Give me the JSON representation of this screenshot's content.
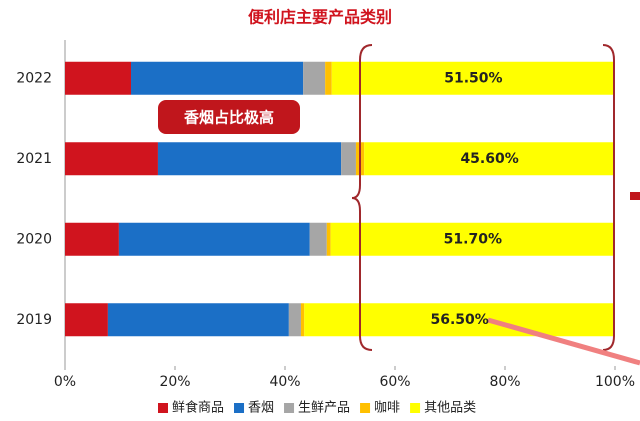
{
  "chart_data": {
    "type": "bar",
    "orientation": "horizontal",
    "stacked": true,
    "title": "便利店主要产品类别",
    "annotation": "香烟占比极高",
    "categories": [
      "2022",
      "2021",
      "2020",
      "2019"
    ],
    "series": [
      {
        "name": "鲜食商品",
        "color": "#d0141e",
        "values": [
          12,
          16.9,
          9.8,
          7.8
        ]
      },
      {
        "name": "香烟",
        "color": "#1b6fc6",
        "values": [
          31.3,
          33.3,
          34.7,
          32.9
        ]
      },
      {
        "name": "生鲜产品",
        "color": "#a6a6a6",
        "values": [
          4,
          2.7,
          3.1,
          2.2
        ]
      },
      {
        "name": "咖啡",
        "color": "#ffc000",
        "values": [
          1.2,
          1.5,
          0.7,
          0.6
        ]
      },
      {
        "name": "其他品类",
        "color": "#ffff00",
        "values": [
          51.5,
          45.6,
          51.7,
          56.5
        ],
        "value_labels": [
          "51.50%",
          "45.60%",
          "51.70%",
          "56.50%"
        ]
      }
    ],
    "xlim": [
      0,
      100
    ],
    "xticks": [
      {
        "value": 0,
        "label": "0%"
      },
      {
        "value": 20,
        "label": "20%"
      },
      {
        "value": 40,
        "label": "40%"
      },
      {
        "value": 60,
        "label": "60%"
      },
      {
        "value": 80,
        "label": "80%"
      },
      {
        "value": 100,
        "label": "100%"
      }
    ],
    "legend": "bottom"
  }
}
